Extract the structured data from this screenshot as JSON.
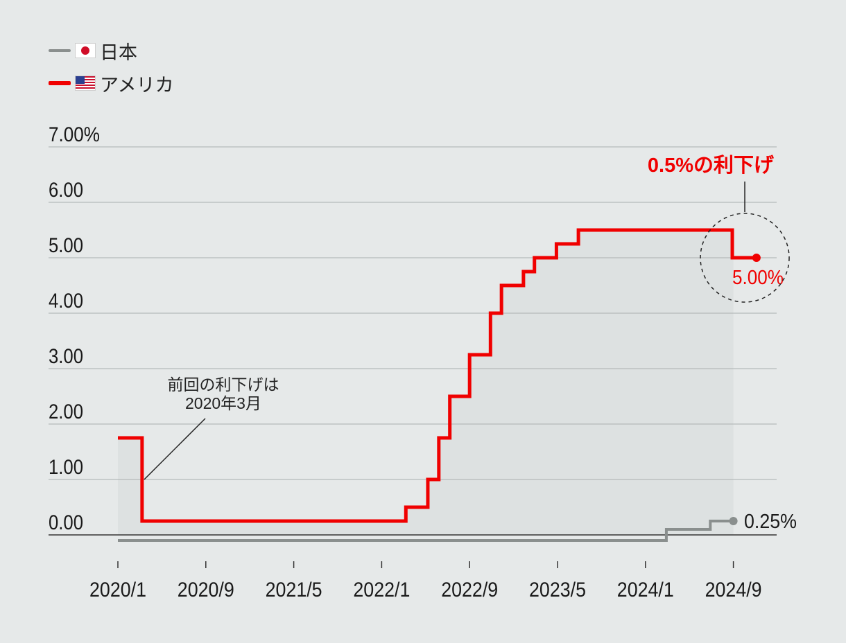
{
  "legend": [
    {
      "label": "日本",
      "color": "#8a8f8e",
      "flag": "jp-flag-icon"
    },
    {
      "label": "アメリカ",
      "color": "#f00000",
      "flag": "us-flag-icon"
    }
  ],
  "chart_data": {
    "type": "line",
    "step": true,
    "ylim": [
      0,
      7
    ],
    "xlim": [
      0,
      58
    ],
    "yticks": [
      {
        "value": 0,
        "label": "0.00"
      },
      {
        "value": 1,
        "label": "1.00"
      },
      {
        "value": 2,
        "label": "2.00"
      },
      {
        "value": 3,
        "label": "3.00"
      },
      {
        "value": 4,
        "label": "4.00"
      },
      {
        "value": 5,
        "label": "5.00"
      },
      {
        "value": 6,
        "label": "6.00"
      },
      {
        "value": 7,
        "label": "7.00%"
      }
    ],
    "xticks": [
      {
        "value": 0,
        "label": "2020/1"
      },
      {
        "value": 8,
        "label": "2020/9"
      },
      {
        "value": 16,
        "label": "2021/5"
      },
      {
        "value": 24,
        "label": "2022/1"
      },
      {
        "value": 32,
        "label": "2022/9"
      },
      {
        "value": 40,
        "label": "2023/5"
      },
      {
        "value": 48,
        "label": "2024/1"
      },
      {
        "value": 56,
        "label": "2024/9"
      }
    ],
    "series": [
      {
        "name": "アメリカ",
        "color": "#f00000",
        "points": [
          [
            0,
            1.75
          ],
          [
            2.2,
            1.75
          ],
          [
            2.2,
            0.25
          ],
          [
            26.2,
            0.25
          ],
          [
            26.2,
            0.5
          ],
          [
            28.2,
            0.5
          ],
          [
            28.2,
            1.0
          ],
          [
            29.2,
            1.0
          ],
          [
            29.2,
            1.75
          ],
          [
            30.2,
            1.75
          ],
          [
            30.2,
            2.5
          ],
          [
            32,
            2.5
          ],
          [
            32,
            3.25
          ],
          [
            33.9,
            3.25
          ],
          [
            33.9,
            4.0
          ],
          [
            34.9,
            4.0
          ],
          [
            34.9,
            4.5
          ],
          [
            36.9,
            4.5
          ],
          [
            36.9,
            4.75
          ],
          [
            37.9,
            4.75
          ],
          [
            37.9,
            5.0
          ],
          [
            39.9,
            5.0
          ],
          [
            39.9,
            5.25
          ],
          [
            41.9,
            5.25
          ],
          [
            41.9,
            5.5
          ],
          [
            55.9,
            5.5
          ],
          [
            55.9,
            5.0
          ],
          [
            58.1,
            5.0
          ]
        ],
        "end_label": "5.00%"
      },
      {
        "name": "日本",
        "color": "#8a8f8e",
        "points": [
          [
            0,
            -0.1
          ],
          [
            49.9,
            -0.1
          ],
          [
            49.9,
            0.1
          ],
          [
            53.9,
            0.1
          ],
          [
            53.9,
            0.25
          ],
          [
            56,
            0.25
          ]
        ],
        "end_label": "0.25%"
      }
    ],
    "annotations": [
      {
        "lines": [
          "前回の利下げは",
          "2020年3月"
        ],
        "points_to": [
          2.4,
          1.0
        ]
      },
      {
        "text": "0.5%の利下げ",
        "points_to": [
          57.1,
          5.0
        ]
      }
    ]
  }
}
